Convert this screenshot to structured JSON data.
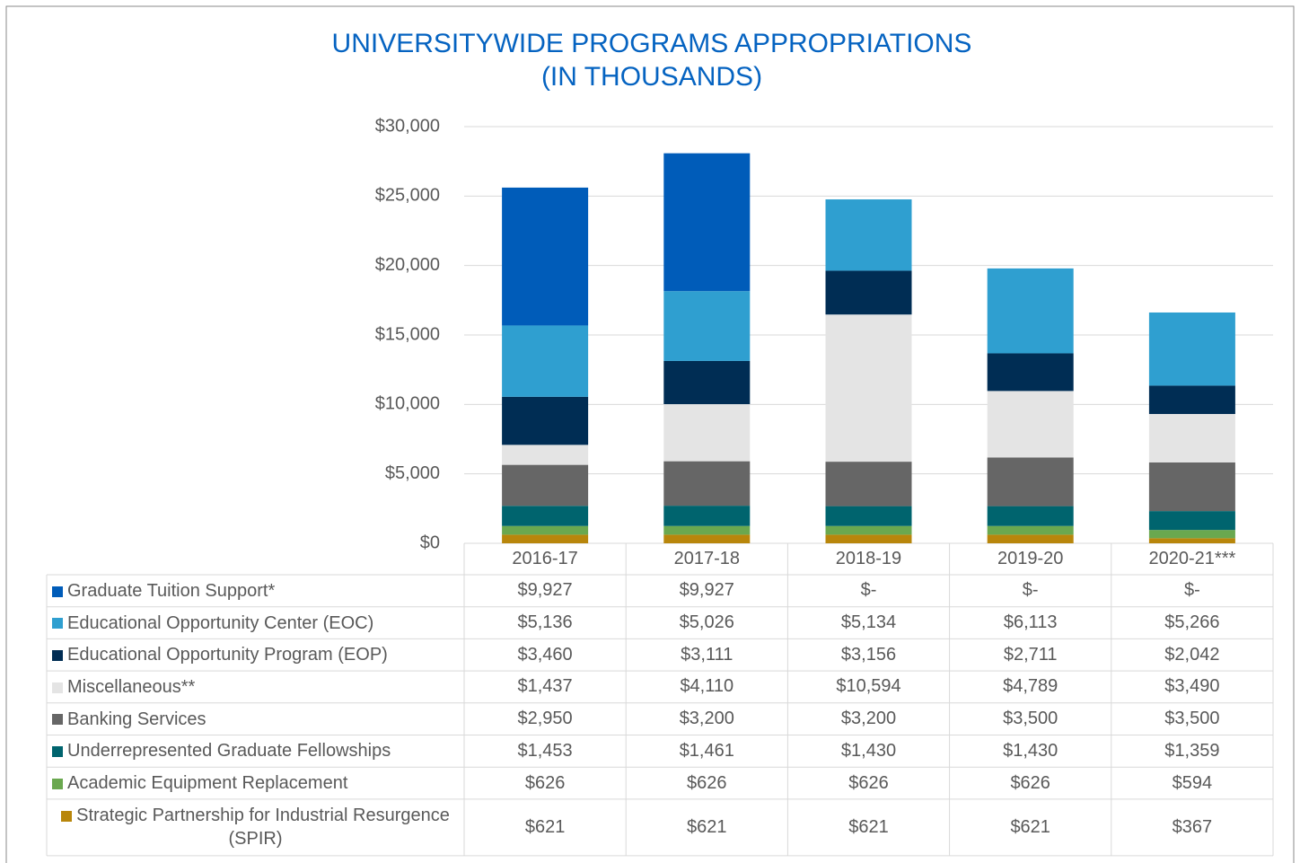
{
  "chart_data": {
    "type": "stacked_bar",
    "title": "UNIVERSITYWIDE PROGRAMS APPROPRIATIONS (IN THOUSANDS)",
    "categories": [
      "2016-17",
      "2017-18",
      "2018-19",
      "2019-20",
      "2020-21***"
    ],
    "ylim": [
      0,
      30000
    ],
    "yticks": [
      {
        "value": 0,
        "label": "$0"
      },
      {
        "value": 5000,
        "label": "$5,000"
      },
      {
        "value": 10000,
        "label": "$10,000"
      },
      {
        "value": 15000,
        "label": "$15,000"
      },
      {
        "value": 20000,
        "label": "$20,000"
      },
      {
        "value": 25000,
        "label": "$25,000"
      },
      {
        "value": 30000,
        "label": "$30,000"
      }
    ],
    "grid": true,
    "series": [
      {
        "name": "Graduate Tuition Support*",
        "color": "#005cb9",
        "values": [
          9927,
          9927,
          0,
          0,
          0
        ],
        "value_labels": [
          "$9,927",
          "$9,927",
          "$-",
          "$-",
          "$-"
        ]
      },
      {
        "name": "Educational Opportunity Center (EOC)",
        "color": "#2f9fd0",
        "values": [
          5136,
          5026,
          5134,
          6113,
          5266
        ],
        "value_labels": [
          "$5,136",
          "$5,026",
          "$5,134",
          "$6,113",
          "$5,266"
        ]
      },
      {
        "name": "Educational Opportunity Program (EOP)",
        "color": "#002d54",
        "values": [
          3460,
          3111,
          3156,
          2711,
          2042
        ],
        "value_labels": [
          "$3,460",
          "$3,111",
          "$3,156",
          "$2,711",
          "$2,042"
        ]
      },
      {
        "name": "Miscellaneous**",
        "color": "#e4e4e4",
        "values": [
          1437,
          4110,
          10594,
          4789,
          3490
        ],
        "value_labels": [
          "$1,437",
          "$4,110",
          "$10,594",
          "$4,789",
          "$3,490"
        ]
      },
      {
        "name": "Banking Services",
        "color": "#666666",
        "values": [
          2950,
          3200,
          3200,
          3500,
          3500
        ],
        "value_labels": [
          "$2,950",
          "$3,200",
          "$3,200",
          "$3,500",
          "$3,500"
        ]
      },
      {
        "name": "Underrepresented Graduate Fellowships",
        "color": "#00646e",
        "values": [
          1453,
          1461,
          1430,
          1430,
          1359
        ],
        "value_labels": [
          "$1,453",
          "$1,461",
          "$1,430",
          "$1,430",
          "$1,359"
        ]
      },
      {
        "name": "Academic Equipment Replacement",
        "color": "#6aa84f",
        "values": [
          626,
          626,
          626,
          626,
          594
        ],
        "value_labels": [
          "$626",
          "$626",
          "$626",
          "$626",
          "$594"
        ]
      },
      {
        "name": "Strategic Partnership for Industrial Resurgence (SPIR)",
        "color": "#b8860b",
        "values": [
          621,
          621,
          621,
          621,
          367
        ],
        "value_labels": [
          "$621",
          "$621",
          "$621",
          "$621",
          "$367"
        ]
      }
    ]
  }
}
